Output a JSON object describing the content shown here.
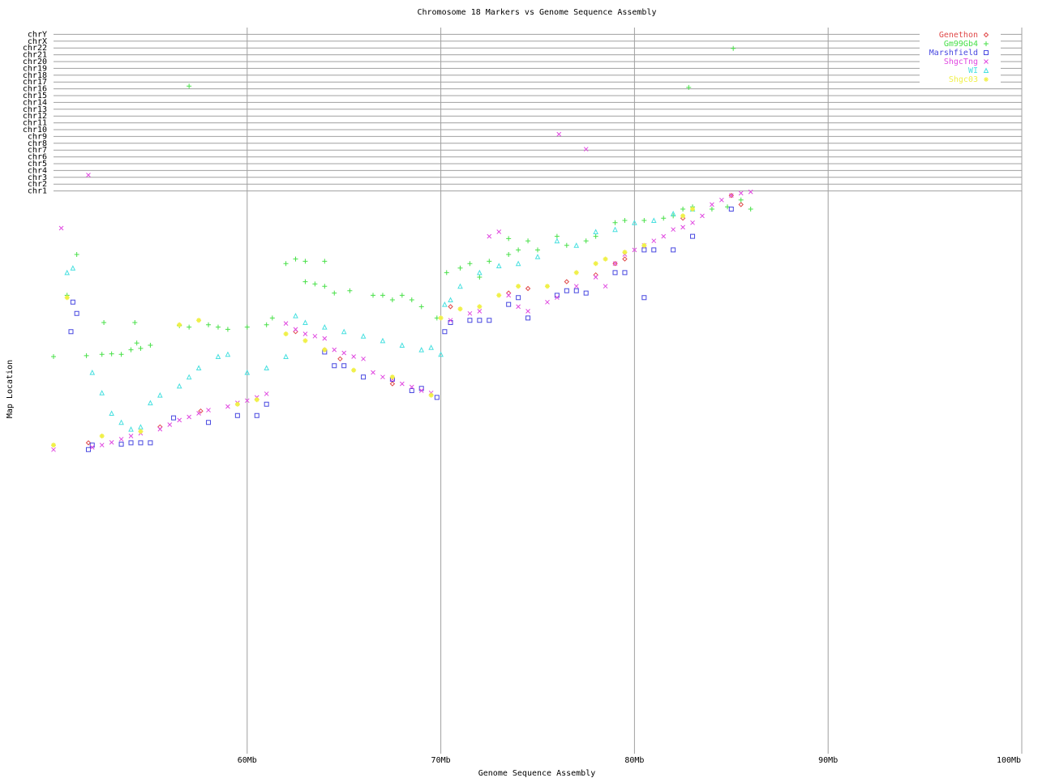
{
  "chart_data": {
    "type": "scatter",
    "title": "Chromosome 18 Markers vs Genome Sequence Assembly",
    "x_label": "Genome Sequence Assembly",
    "y_label": "Map Location",
    "xlim": [
      50,
      100
    ],
    "xticks": [
      {
        "value": 60,
        "label": "60Mb"
      },
      {
        "value": 70,
        "label": "70Mb"
      },
      {
        "value": 80,
        "label": "80Mb"
      },
      {
        "value": 90,
        "label": "90Mb"
      },
      {
        "value": 100,
        "label": "100Mb"
      }
    ],
    "ylim": [
      0,
      160
    ],
    "yticks": [
      {
        "value": 124,
        "label": "chr1"
      },
      {
        "value": 125.5,
        "label": "chr2"
      },
      {
        "value": 127,
        "label": "chr3"
      },
      {
        "value": 128.5,
        "label": "chr4"
      },
      {
        "value": 130,
        "label": "chr5"
      },
      {
        "value": 131.5,
        "label": "chr6"
      },
      {
        "value": 133,
        "label": "chr7"
      },
      {
        "value": 134.5,
        "label": "chr8"
      },
      {
        "value": 136,
        "label": "chr9"
      },
      {
        "value": 137.5,
        "label": "chr10"
      },
      {
        "value": 139,
        "label": "chr11"
      },
      {
        "value": 140.5,
        "label": "chr12"
      },
      {
        "value": 142,
        "label": "chr13"
      },
      {
        "value": 143.5,
        "label": "chr14"
      },
      {
        "value": 145,
        "label": "chr15"
      },
      {
        "value": 146.5,
        "label": "chr16"
      },
      {
        "value": 148,
        "label": "chr17"
      },
      {
        "value": 149.5,
        "label": "chr18"
      },
      {
        "value": 151,
        "label": "chr19"
      },
      {
        "value": 152.5,
        "label": "chr20"
      },
      {
        "value": 154,
        "label": "chr21"
      },
      {
        "value": 155.5,
        "label": "chr22"
      },
      {
        "value": 157,
        "label": "chrX"
      },
      {
        "value": 158.5,
        "label": "chrY"
      }
    ],
    "grid": true,
    "legend": "top-right",
    "series": [
      {
        "name": "Genethon",
        "color": "#e04848",
        "marker": "diamond",
        "x": [
          51.8,
          55.5,
          57.6,
          62.5,
          64,
          64.8,
          67.5,
          70.5,
          73.5,
          74.5,
          76.5,
          78,
          79,
          79.5,
          82.5,
          85,
          85.5
        ],
        "values": [
          68.5,
          72,
          75.5,
          93,
          89,
          87,
          81.5,
          98.5,
          101.5,
          102.5,
          104,
          105.5,
          108,
          109,
          118,
          123,
          121
        ]
      },
      {
        "name": "Gm99Gb4",
        "color": "#48e048",
        "marker": "plus",
        "x": [
          50,
          51.7,
          52.5,
          53,
          53.5,
          54,
          54.3,
          54.5,
          55,
          51.2,
          50.7,
          52.6,
          54.2,
          56.5,
          57,
          58,
          58.5,
          59,
          60,
          61,
          61.3,
          62,
          62.5,
          63,
          63,
          63.5,
          64,
          64,
          64.5,
          65.3,
          66.5,
          67,
          67.5,
          68,
          68.5,
          69,
          69.8,
          70.3,
          71,
          71.5,
          72,
          72.5,
          73.5,
          73.5,
          74,
          74.5,
          75,
          76,
          76.5,
          77.5,
          78,
          79,
          79.5,
          80.5,
          81.5,
          82,
          82.5,
          83,
          84,
          84.8,
          85.5,
          86,
          57,
          85.1,
          82.8
        ],
        "values": [
          87.5,
          87.7,
          88,
          88.1,
          88,
          89,
          90.5,
          89.3,
          90,
          110,
          101,
          95,
          95,
          94.3,
          94,
          94.5,
          94,
          93.5,
          94,
          94.5,
          96,
          108,
          109,
          108.5,
          104,
          103.5,
          103,
          108.5,
          101.5,
          102,
          101,
          101,
          100,
          101,
          100,
          98.5,
          96,
          106,
          107,
          108,
          105,
          108.5,
          113.5,
          110,
          111,
          113,
          111,
          114,
          112,
          113,
          114,
          117,
          117.5,
          117.5,
          118,
          118.5,
          120,
          120.5,
          120,
          120.5,
          122,
          120,
          147.1,
          155.4,
          146.8
        ]
      },
      {
        "name": "Marshfield",
        "color": "#4848e0",
        "marker": "square",
        "x": [
          51,
          51.2,
          50.9,
          51.8,
          52,
          53.5,
          54,
          54.5,
          55,
          56.2,
          58,
          59.5,
          60.5,
          61,
          64,
          64.5,
          65,
          66,
          67.5,
          68.5,
          69,
          69.8,
          70.2,
          70.5,
          71.5,
          72,
          72.5,
          73.5,
          74,
          74.5,
          76,
          76.5,
          77,
          77.5,
          79,
          79.5,
          80.5,
          81,
          82,
          80.5,
          83,
          85
        ],
        "values": [
          99.5,
          97,
          93,
          67,
          68,
          68.2,
          68.5,
          68.5,
          68.5,
          74,
          73,
          74.5,
          74.5,
          77,
          88.5,
          85.5,
          85.5,
          83,
          82.5,
          80,
          80.5,
          78.5,
          93,
          95,
          95.5,
          95.5,
          95.5,
          99,
          100.5,
          96,
          101,
          102,
          102,
          101.5,
          106,
          106,
          111,
          111,
          111,
          100.5,
          114,
          120
        ]
      },
      {
        "name": "ShgcTng",
        "color": "#e048e0",
        "marker": "cross",
        "x": [
          50,
          52,
          52.5,
          53,
          53.5,
          54,
          54.5,
          55.5,
          56,
          56.5,
          57,
          57.5,
          58,
          59,
          59.5,
          60,
          60.5,
          61,
          62,
          62.5,
          63,
          63.5,
          64,
          64.5,
          65,
          65.5,
          66,
          66.5,
          67,
          67.5,
          68,
          68.5,
          69,
          69.5,
          50.4,
          51.8,
          76.1,
          77.5,
          70.5,
          71.5,
          72,
          72.5,
          73,
          73.5,
          74,
          74.5,
          75.5,
          76,
          77,
          78,
          78.5,
          79,
          79.5,
          80,
          80.5,
          81,
          81.5,
          82,
          82.5,
          83,
          83.5,
          84,
          84.5,
          85,
          85.5,
          86
        ],
        "values": [
          67,
          67.5,
          68,
          68.6,
          69.3,
          70,
          70.6,
          71.5,
          72.5,
          73.5,
          74.2,
          75,
          75.7,
          76.5,
          77.3,
          77.8,
          78.5,
          79.3,
          94.8,
          93.5,
          92.5,
          92,
          91.5,
          89,
          88.3,
          87.5,
          87,
          84,
          83,
          82.5,
          81.5,
          80.8,
          80,
          79.5,
          115.8,
          127.5,
          136.5,
          133.2,
          95.5,
          97,
          97.5,
          114,
          115,
          101,
          98.5,
          97.5,
          99.5,
          100.5,
          103,
          105,
          103,
          108,
          110,
          111,
          112,
          113,
          114,
          115.5,
          116,
          117,
          118.5,
          121,
          122,
          123,
          123.5,
          123.8
        ]
      },
      {
        "name": "WI",
        "color": "#48e0e0",
        "marker": "triangle",
        "x": [
          50.7,
          51,
          52,
          52.5,
          53,
          53.5,
          54,
          54.5,
          55,
          55.5,
          56.5,
          57,
          57.5,
          58.5,
          59,
          60,
          61,
          62,
          62.5,
          63,
          64,
          65,
          66,
          67,
          68,
          69,
          69.5,
          70,
          70.2,
          70.5,
          71,
          72,
          73,
          74,
          75,
          76,
          77,
          78,
          79,
          80,
          81,
          82,
          83
        ],
        "values": [
          106,
          107,
          84,
          79.5,
          75,
          73,
          71.5,
          72,
          77.3,
          79,
          81,
          83,
          85,
          87.5,
          88,
          84,
          85,
          87.5,
          96.5,
          95,
          94,
          93,
          92,
          91,
          90,
          89,
          89.5,
          88,
          99,
          100,
          103,
          106,
          107.5,
          108,
          109.5,
          113,
          112,
          115,
          115.5,
          117,
          117.5,
          119,
          120
        ]
      },
      {
        "name": "Shgc03",
        "color": "#f0f048",
        "marker": "star",
        "x": [
          50,
          50.7,
          52.5,
          54.5,
          56.5,
          57.5,
          59.5,
          60.5,
          62,
          63,
          64,
          65.5,
          67.5,
          69.5,
          70,
          71,
          72,
          73,
          74,
          75.5,
          77,
          78,
          78.5,
          79.5,
          80.5,
          82.5,
          83
        ],
        "values": [
          68,
          100.5,
          70,
          71,
          94.5,
          95.5,
          77,
          78,
          92.5,
          91,
          89,
          84.5,
          83,
          79,
          96,
          98,
          98.5,
          101,
          103,
          103,
          106,
          108,
          109,
          110.5,
          112,
          118.5,
          120
        ]
      }
    ]
  }
}
